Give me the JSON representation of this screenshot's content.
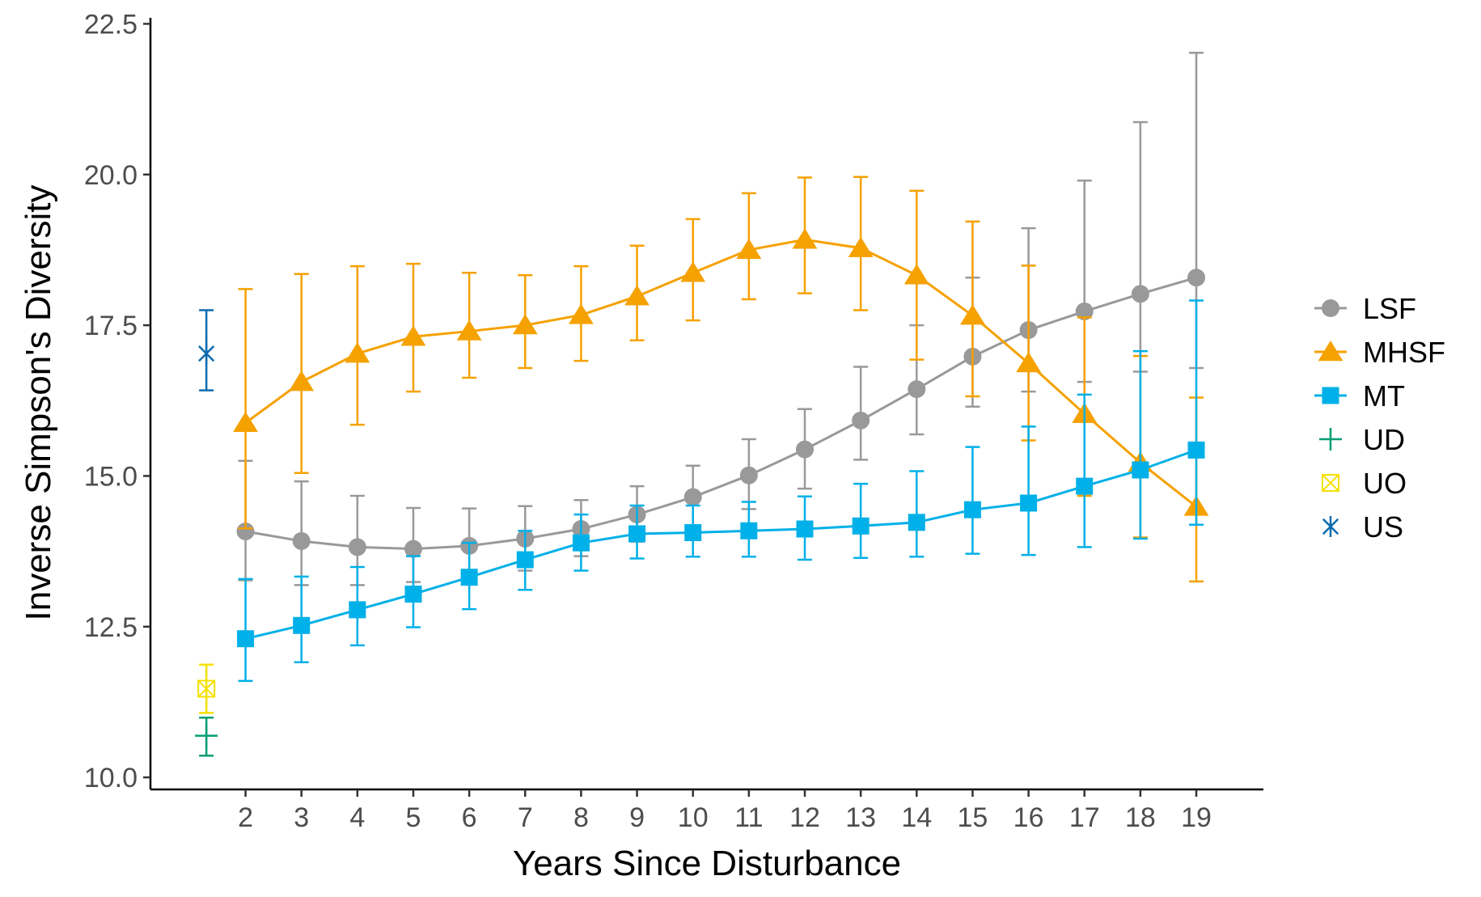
{
  "chart_data": {
    "type": "line",
    "title": "",
    "xlabel": "Years Since Disturbance",
    "ylabel": "Inverse Simpson's Diversity",
    "x": [
      2,
      3,
      4,
      5,
      6,
      7,
      8,
      9,
      10,
      11,
      12,
      13,
      14,
      15,
      16,
      17,
      18,
      19
    ],
    "xlim": [
      0.3,
      20.2
    ],
    "ylim": [
      9.8,
      22.6
    ],
    "y_ticks": [
      10.0,
      12.5,
      15.0,
      17.5,
      20.0,
      22.5
    ],
    "y_tick_labels": [
      "10.0",
      "12.5",
      "15.0",
      "17.5",
      "20.0",
      "22.5"
    ],
    "x_tick_labels": [
      "2",
      "3",
      "4",
      "5",
      "6",
      "7",
      "8",
      "9",
      "10",
      "11",
      "12",
      "13",
      "14",
      "15",
      "16",
      "17",
      "18",
      "19"
    ],
    "grid": false,
    "legend_position": "right",
    "series": [
      {
        "name": "LSF",
        "color": "#999999",
        "marker": "circle",
        "values": [
          14.08,
          13.92,
          13.82,
          13.79,
          13.84,
          13.96,
          14.12,
          14.36,
          14.65,
          15.01,
          15.44,
          15.92,
          16.44,
          16.98,
          17.42,
          17.73,
          18.02,
          18.29
        ],
        "lower": [
          13.27,
          13.19,
          13.19,
          13.24,
          13.24,
          13.43,
          13.67,
          13.91,
          14.12,
          14.45,
          14.79,
          15.27,
          15.69,
          16.15,
          16.4,
          16.56,
          16.73,
          16.79
        ],
        "upper": [
          15.25,
          14.91,
          14.67,
          14.47,
          14.46,
          14.5,
          14.6,
          14.83,
          15.17,
          15.61,
          16.11,
          16.81,
          17.5,
          18.29,
          19.11,
          19.9,
          20.87,
          22.02
        ]
      },
      {
        "name": "MHSF",
        "color": "#F5A100",
        "marker": "triangle",
        "values": [
          15.88,
          16.56,
          17.03,
          17.31,
          17.4,
          17.5,
          17.67,
          17.98,
          18.37,
          18.75,
          18.92,
          18.78,
          18.33,
          17.66,
          16.87,
          16.03,
          15.22,
          14.49
        ],
        "lower": [
          14.13,
          15.05,
          15.85,
          16.4,
          16.63,
          16.79,
          16.91,
          17.25,
          17.58,
          17.93,
          18.03,
          17.75,
          16.93,
          16.32,
          15.59,
          14.67,
          13.98,
          13.25
        ],
        "upper": [
          18.1,
          18.35,
          18.48,
          18.52,
          18.37,
          18.33,
          18.48,
          18.82,
          19.26,
          19.69,
          19.95,
          19.96,
          19.73,
          19.22,
          18.49,
          17.63,
          16.99,
          16.3
        ]
      },
      {
        "name": "MT",
        "color": "#00B0E8",
        "marker": "square",
        "values": [
          12.3,
          12.52,
          12.78,
          13.04,
          13.32,
          13.61,
          13.89,
          14.04,
          14.06,
          14.09,
          14.12,
          14.17,
          14.23,
          14.44,
          14.55,
          14.83,
          15.1,
          15.43
        ],
        "lower": [
          11.6,
          11.91,
          12.19,
          12.49,
          12.79,
          13.11,
          13.43,
          13.63,
          13.66,
          13.66,
          13.61,
          13.64,
          13.66,
          13.71,
          13.69,
          13.82,
          13.96,
          14.19
        ],
        "upper": [
          13.29,
          13.33,
          13.49,
          13.67,
          13.89,
          14.09,
          14.36,
          14.51,
          14.51,
          14.57,
          14.66,
          14.87,
          15.08,
          15.48,
          15.82,
          16.35,
          17.07,
          17.91
        ]
      }
    ],
    "reference_points": [
      {
        "name": "UD",
        "color": "#009E73",
        "marker": "plus",
        "x": 1.3,
        "value": 10.69,
        "lower": 10.36,
        "upper": 10.99
      },
      {
        "name": "UO",
        "color": "#F5E000",
        "marker": "square-cross",
        "x": 1.3,
        "value": 11.47,
        "lower": 11.07,
        "upper": 11.87
      },
      {
        "name": "US",
        "color": "#0B6BAF",
        "marker": "asterisk",
        "x": 1.3,
        "value": 17.03,
        "lower": 16.42,
        "upper": 17.75
      }
    ],
    "legend": [
      {
        "label": "LSF",
        "color": "#999999",
        "marker": "circle"
      },
      {
        "label": "MHSF",
        "color": "#F5A100",
        "marker": "triangle"
      },
      {
        "label": "MT",
        "color": "#00B0E8",
        "marker": "square"
      },
      {
        "label": "UD",
        "color": "#009E73",
        "marker": "plus"
      },
      {
        "label": "UO",
        "color": "#F5E000",
        "marker": "square-cross"
      },
      {
        "label": "US",
        "color": "#0B6BAF",
        "marker": "asterisk"
      }
    ]
  }
}
